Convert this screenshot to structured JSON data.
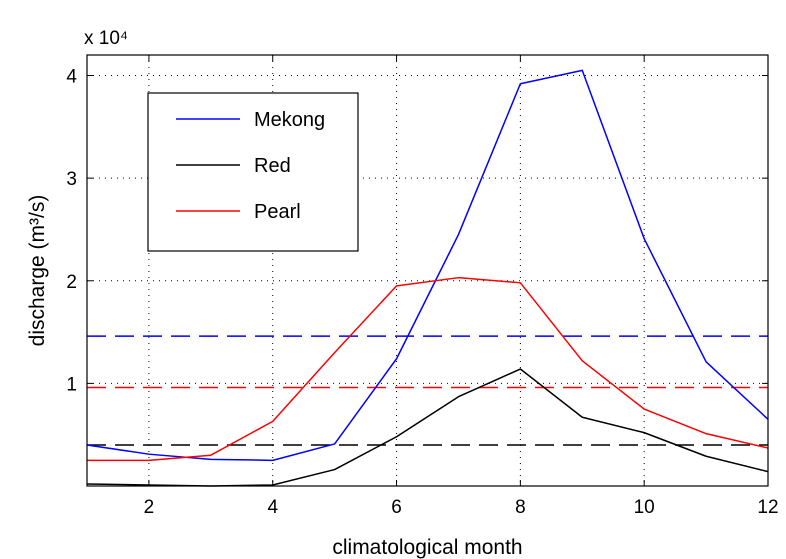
{
  "chart_data": {
    "type": "line",
    "xlabel": "climatological month",
    "ylabel": "discharge (m³/s)",
    "y_multiplier": "x 10⁴",
    "xlim": [
      1,
      12
    ],
    "ylim": [
      0,
      4.2
    ],
    "xticks": [
      2,
      4,
      6,
      8,
      10,
      12
    ],
    "yticks": [
      1,
      2,
      3,
      4
    ],
    "grid": true,
    "legend_position": "top-left",
    "x": [
      1,
      2,
      3,
      4,
      5,
      6,
      7,
      8,
      9,
      10,
      11,
      12
    ],
    "series": [
      {
        "name": "Mekong",
        "color": "#0000ff",
        "values": [
          0.4,
          0.31,
          0.26,
          0.25,
          0.41,
          1.24,
          2.45,
          3.92,
          4.05,
          2.41,
          1.21,
          0.65
        ],
        "mean": 1.46
      },
      {
        "name": "Red",
        "color": "#000000",
        "values": [
          0.02,
          0.01,
          0.0,
          0.01,
          0.16,
          0.48,
          0.87,
          1.14,
          0.67,
          0.52,
          0.29,
          0.14
        ],
        "mean": 0.4
      },
      {
        "name": "Pearl",
        "color": "#ff0000",
        "values": [
          0.25,
          0.25,
          0.3,
          0.63,
          1.3,
          1.95,
          2.03,
          1.98,
          1.22,
          0.75,
          0.51,
          0.37
        ],
        "mean": 0.96
      }
    ]
  }
}
